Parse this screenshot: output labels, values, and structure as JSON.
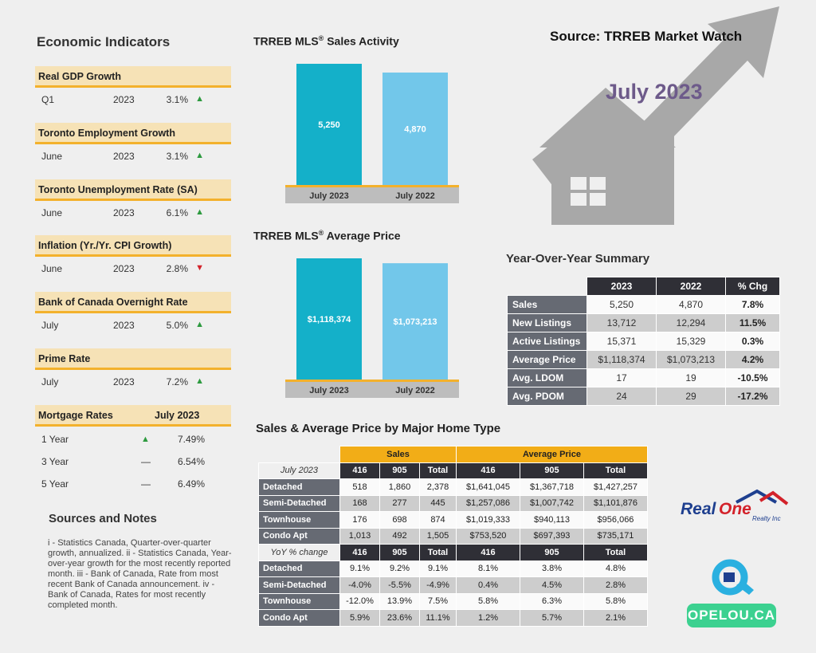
{
  "source": "Source: TRREB Market Watch",
  "month": "July 2023",
  "econ": {
    "title": "Economic Indicators",
    "indicators": [
      {
        "name": "Real GDP Growth",
        "period": "Q1",
        "year": "2023",
        "value": "3.1%",
        "trend": "▲"
      },
      {
        "name": "Toronto Employment Growth",
        "period": "June",
        "year": "2023",
        "value": "3.1%",
        "trend": "▲"
      },
      {
        "name": "Toronto Unemployment Rate (SA)",
        "period": "June",
        "year": "2023",
        "value": "6.1%",
        "trend": "▲"
      },
      {
        "name": "Inflation (Yr./Yr. CPI Growth)",
        "period": "June",
        "year": "2023",
        "value": "2.8%",
        "trend": "▼"
      },
      {
        "name": "Bank of Canada Overnight Rate",
        "period": "July",
        "year": "2023",
        "value": "5.0%",
        "trend": "▲"
      },
      {
        "name": "Prime Rate",
        "period": "July",
        "year": "2023",
        "value": "7.2%",
        "trend": "▲"
      }
    ],
    "mortgage": {
      "title": "Mortgage Rates",
      "date": "July 2023",
      "rows": [
        {
          "term": "1 Year",
          "trend": "▲",
          "rate": "7.49%"
        },
        {
          "term": "3 Year",
          "trend": "—",
          "rate": "6.54%"
        },
        {
          "term": "5 Year",
          "trend": "—",
          "rate": "6.49%"
        }
      ]
    }
  },
  "sources": {
    "title": "Sources and Notes",
    "text": "i - Statistics Canada, Quarter-over-quarter growth, annualized. ii - Statistics Canada, Year-over-year growth for the most recently reported month. iii - Bank of Canada, Rate from most recent Bank of Canada announcement. iv - Bank of Canada, Rates for most recently completed month."
  },
  "chart_data": [
    {
      "type": "bar",
      "title": "TRREB MLS® Sales Activity",
      "categories": [
        "July 2023",
        "July 2022"
      ],
      "values": [
        5250,
        4870
      ],
      "labels": [
        "5,250",
        "4,870"
      ],
      "colors": [
        "#14b0c9",
        "#72c7ea"
      ]
    },
    {
      "type": "bar",
      "title": "TRREB MLS® Average Price",
      "categories": [
        "July 2023",
        "July 2022"
      ],
      "values": [
        1118374,
        1073213
      ],
      "labels": [
        "$1,118,374",
        "$1,073,213"
      ],
      "colors": [
        "#14b0c9",
        "#72c7ea"
      ]
    },
    {
      "type": "table",
      "title": "Year-Over-Year Summary",
      "columns": [
        "2023",
        "2022",
        "% Chg"
      ],
      "rows": [
        {
          "label": "Sales",
          "v2023": "5,250",
          "v2022": "4,870",
          "chg": "7.8%"
        },
        {
          "label": "New Listings",
          "v2023": "13,712",
          "v2022": "12,294",
          "chg": "11.5%"
        },
        {
          "label": "Active Listings",
          "v2023": "15,371",
          "v2022": "15,329",
          "chg": "0.3%"
        },
        {
          "label": "Average Price",
          "v2023": "$1,118,374",
          "v2022": "$1,073,213",
          "chg": "4.2%"
        },
        {
          "label": "Avg. LDOM",
          "v2023": "17",
          "v2022": "19",
          "chg": "-10.5%"
        },
        {
          "label": "Avg. PDOM",
          "v2023": "24",
          "v2022": "29",
          "chg": "-17.2%"
        }
      ]
    },
    {
      "type": "table",
      "title": "Sales & Average Price by Major Home Type",
      "group_headers": [
        "Sales",
        "Average Price"
      ],
      "period": "July 2023",
      "change_label": "YoY % change",
      "columns": [
        "416",
        "905",
        "Total",
        "416",
        "905",
        "Total"
      ],
      "rows": [
        {
          "label": "Detached",
          "values": [
            "518",
            "1,860",
            "2,378",
            "$1,641,045",
            "$1,367,718",
            "$1,427,257"
          ]
        },
        {
          "label": "Semi-Detached",
          "values": [
            "168",
            "277",
            "445",
            "$1,257,086",
            "$1,007,742",
            "$1,101,876"
          ]
        },
        {
          "label": "Townhouse",
          "values": [
            "176",
            "698",
            "874",
            "$1,019,333",
            "$940,113",
            "$956,066"
          ]
        },
        {
          "label": "Condo Apt",
          "values": [
            "1,013",
            "492",
            "1,505",
            "$753,520",
            "$697,393",
            "$735,171"
          ]
        }
      ],
      "change_rows": [
        {
          "label": "Detached",
          "values": [
            "9.1%",
            "9.2%",
            "9.1%",
            "8.1%",
            "3.8%",
            "4.8%"
          ]
        },
        {
          "label": "Semi-Detached",
          "values": [
            "-4.0%",
            "-5.5%",
            "-4.9%",
            "0.4%",
            "4.5%",
            "2.8%"
          ]
        },
        {
          "label": "Townhouse",
          "values": [
            "-12.0%",
            "13.9%",
            "7.5%",
            "5.8%",
            "6.3%",
            "5.8%"
          ]
        },
        {
          "label": "Condo Apt",
          "values": [
            "5.9%",
            "23.6%",
            "11.1%",
            "1.2%",
            "5.7%",
            "2.1%"
          ]
        }
      ]
    }
  ],
  "logos": {
    "realone": "Real One",
    "realone_sub": "Realty Inc",
    "opelou": "OPELOU.CA"
  }
}
